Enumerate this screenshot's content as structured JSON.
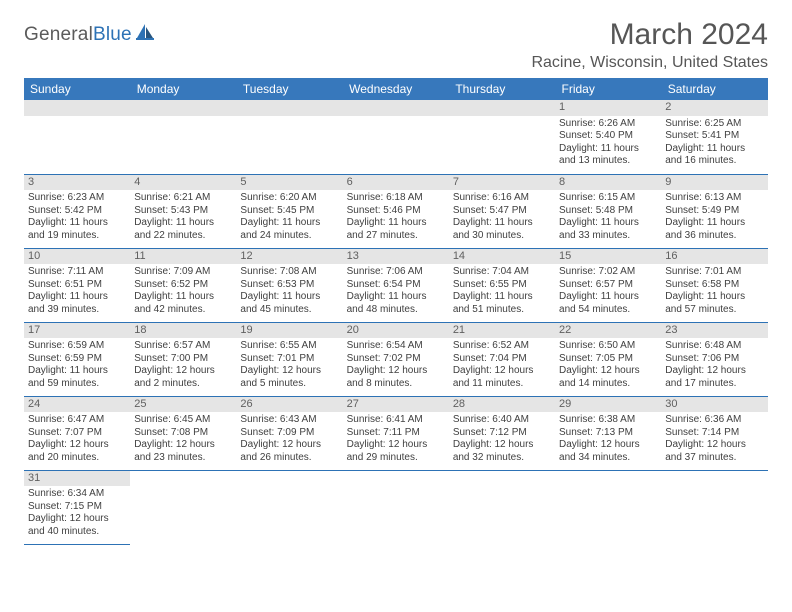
{
  "branding": {
    "logo_general": "General",
    "logo_blue": "Blue",
    "logo_color_primary": "#2d72b5",
    "logo_color_text": "#5b5b5b"
  },
  "header": {
    "month_title": "March 2024",
    "location": "Racine, Wisconsin, United States"
  },
  "styling": {
    "header_bg": "#3778bc",
    "header_text": "#ffffff",
    "daynum_bg": "#e5e5e5",
    "cell_border": "#2d72b5",
    "body_text": "#404040",
    "title_text": "#565656"
  },
  "calendar": {
    "day_headers": [
      "Sunday",
      "Monday",
      "Tuesday",
      "Wednesday",
      "Thursday",
      "Friday",
      "Saturday"
    ],
    "weeks": [
      [
        null,
        null,
        null,
        null,
        null,
        {
          "n": "1",
          "sr": "Sunrise: 6:26 AM",
          "ss": "Sunset: 5:40 PM",
          "d1": "Daylight: 11 hours",
          "d2": "and 13 minutes."
        },
        {
          "n": "2",
          "sr": "Sunrise: 6:25 AM",
          "ss": "Sunset: 5:41 PM",
          "d1": "Daylight: 11 hours",
          "d2": "and 16 minutes."
        }
      ],
      [
        {
          "n": "3",
          "sr": "Sunrise: 6:23 AM",
          "ss": "Sunset: 5:42 PM",
          "d1": "Daylight: 11 hours",
          "d2": "and 19 minutes."
        },
        {
          "n": "4",
          "sr": "Sunrise: 6:21 AM",
          "ss": "Sunset: 5:43 PM",
          "d1": "Daylight: 11 hours",
          "d2": "and 22 minutes."
        },
        {
          "n": "5",
          "sr": "Sunrise: 6:20 AM",
          "ss": "Sunset: 5:45 PM",
          "d1": "Daylight: 11 hours",
          "d2": "and 24 minutes."
        },
        {
          "n": "6",
          "sr": "Sunrise: 6:18 AM",
          "ss": "Sunset: 5:46 PM",
          "d1": "Daylight: 11 hours",
          "d2": "and 27 minutes."
        },
        {
          "n": "7",
          "sr": "Sunrise: 6:16 AM",
          "ss": "Sunset: 5:47 PM",
          "d1": "Daylight: 11 hours",
          "d2": "and 30 minutes."
        },
        {
          "n": "8",
          "sr": "Sunrise: 6:15 AM",
          "ss": "Sunset: 5:48 PM",
          "d1": "Daylight: 11 hours",
          "d2": "and 33 minutes."
        },
        {
          "n": "9",
          "sr": "Sunrise: 6:13 AM",
          "ss": "Sunset: 5:49 PM",
          "d1": "Daylight: 11 hours",
          "d2": "and 36 minutes."
        }
      ],
      [
        {
          "n": "10",
          "sr": "Sunrise: 7:11 AM",
          "ss": "Sunset: 6:51 PM",
          "d1": "Daylight: 11 hours",
          "d2": "and 39 minutes."
        },
        {
          "n": "11",
          "sr": "Sunrise: 7:09 AM",
          "ss": "Sunset: 6:52 PM",
          "d1": "Daylight: 11 hours",
          "d2": "and 42 minutes."
        },
        {
          "n": "12",
          "sr": "Sunrise: 7:08 AM",
          "ss": "Sunset: 6:53 PM",
          "d1": "Daylight: 11 hours",
          "d2": "and 45 minutes."
        },
        {
          "n": "13",
          "sr": "Sunrise: 7:06 AM",
          "ss": "Sunset: 6:54 PM",
          "d1": "Daylight: 11 hours",
          "d2": "and 48 minutes."
        },
        {
          "n": "14",
          "sr": "Sunrise: 7:04 AM",
          "ss": "Sunset: 6:55 PM",
          "d1": "Daylight: 11 hours",
          "d2": "and 51 minutes."
        },
        {
          "n": "15",
          "sr": "Sunrise: 7:02 AM",
          "ss": "Sunset: 6:57 PM",
          "d1": "Daylight: 11 hours",
          "d2": "and 54 minutes."
        },
        {
          "n": "16",
          "sr": "Sunrise: 7:01 AM",
          "ss": "Sunset: 6:58 PM",
          "d1": "Daylight: 11 hours",
          "d2": "and 57 minutes."
        }
      ],
      [
        {
          "n": "17",
          "sr": "Sunrise: 6:59 AM",
          "ss": "Sunset: 6:59 PM",
          "d1": "Daylight: 11 hours",
          "d2": "and 59 minutes."
        },
        {
          "n": "18",
          "sr": "Sunrise: 6:57 AM",
          "ss": "Sunset: 7:00 PM",
          "d1": "Daylight: 12 hours",
          "d2": "and 2 minutes."
        },
        {
          "n": "19",
          "sr": "Sunrise: 6:55 AM",
          "ss": "Sunset: 7:01 PM",
          "d1": "Daylight: 12 hours",
          "d2": "and 5 minutes."
        },
        {
          "n": "20",
          "sr": "Sunrise: 6:54 AM",
          "ss": "Sunset: 7:02 PM",
          "d1": "Daylight: 12 hours",
          "d2": "and 8 minutes."
        },
        {
          "n": "21",
          "sr": "Sunrise: 6:52 AM",
          "ss": "Sunset: 7:04 PM",
          "d1": "Daylight: 12 hours",
          "d2": "and 11 minutes."
        },
        {
          "n": "22",
          "sr": "Sunrise: 6:50 AM",
          "ss": "Sunset: 7:05 PM",
          "d1": "Daylight: 12 hours",
          "d2": "and 14 minutes."
        },
        {
          "n": "23",
          "sr": "Sunrise: 6:48 AM",
          "ss": "Sunset: 7:06 PM",
          "d1": "Daylight: 12 hours",
          "d2": "and 17 minutes."
        }
      ],
      [
        {
          "n": "24",
          "sr": "Sunrise: 6:47 AM",
          "ss": "Sunset: 7:07 PM",
          "d1": "Daylight: 12 hours",
          "d2": "and 20 minutes."
        },
        {
          "n": "25",
          "sr": "Sunrise: 6:45 AM",
          "ss": "Sunset: 7:08 PM",
          "d1": "Daylight: 12 hours",
          "d2": "and 23 minutes."
        },
        {
          "n": "26",
          "sr": "Sunrise: 6:43 AM",
          "ss": "Sunset: 7:09 PM",
          "d1": "Daylight: 12 hours",
          "d2": "and 26 minutes."
        },
        {
          "n": "27",
          "sr": "Sunrise: 6:41 AM",
          "ss": "Sunset: 7:11 PM",
          "d1": "Daylight: 12 hours",
          "d2": "and 29 minutes."
        },
        {
          "n": "28",
          "sr": "Sunrise: 6:40 AM",
          "ss": "Sunset: 7:12 PM",
          "d1": "Daylight: 12 hours",
          "d2": "and 32 minutes."
        },
        {
          "n": "29",
          "sr": "Sunrise: 6:38 AM",
          "ss": "Sunset: 7:13 PM",
          "d1": "Daylight: 12 hours",
          "d2": "and 34 minutes."
        },
        {
          "n": "30",
          "sr": "Sunrise: 6:36 AM",
          "ss": "Sunset: 7:14 PM",
          "d1": "Daylight: 12 hours",
          "d2": "and 37 minutes."
        }
      ],
      [
        {
          "n": "31",
          "sr": "Sunrise: 6:34 AM",
          "ss": "Sunset: 7:15 PM",
          "d1": "Daylight: 12 hours",
          "d2": "and 40 minutes."
        },
        null,
        null,
        null,
        null,
        null,
        null
      ]
    ]
  }
}
